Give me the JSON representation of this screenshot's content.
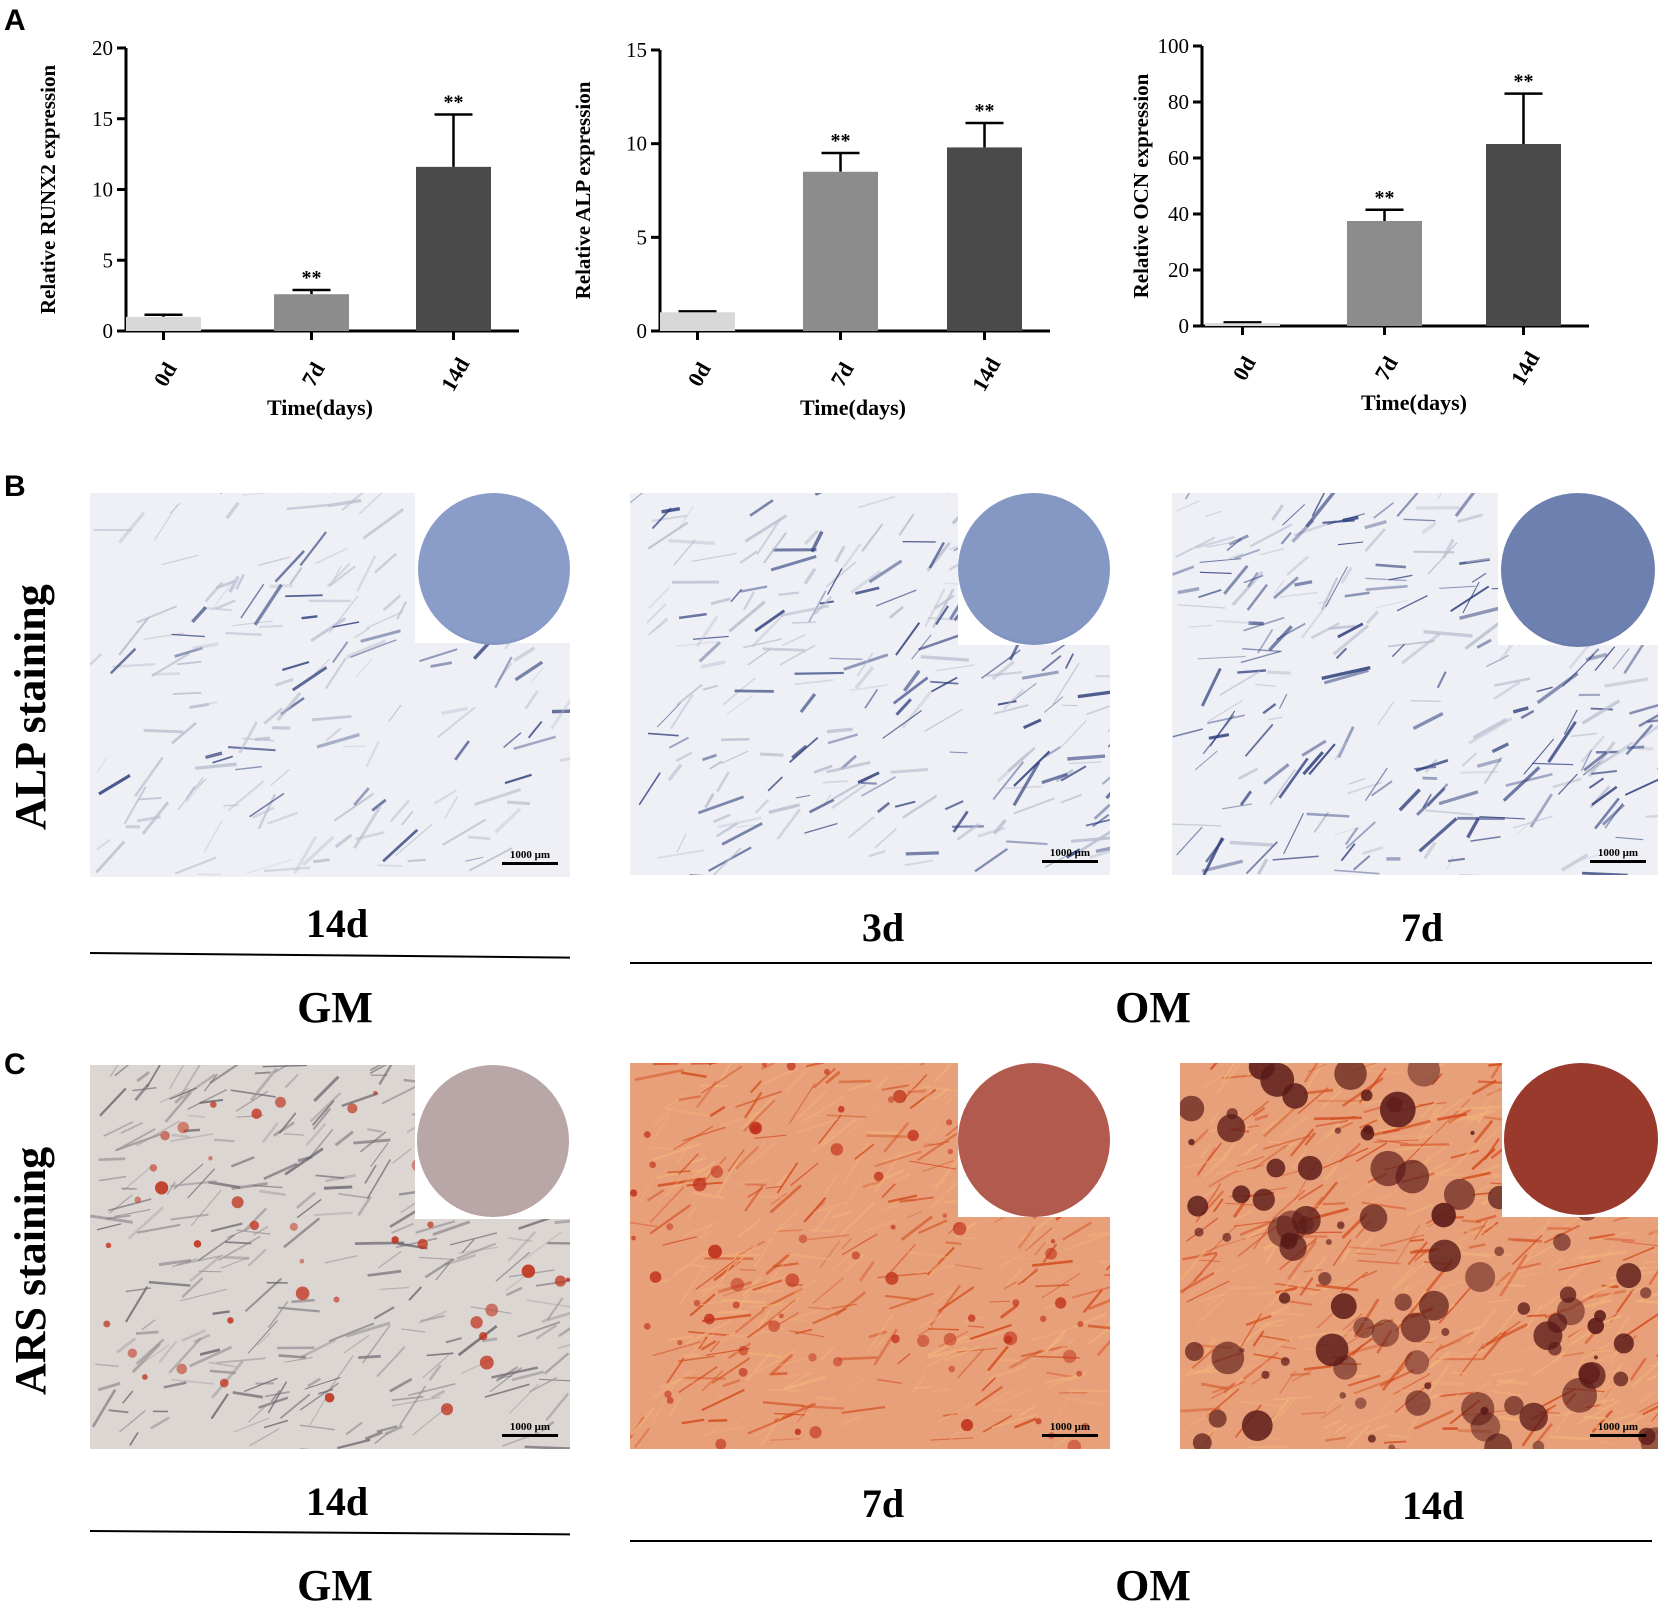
{
  "panels": {
    "a": "A",
    "b": "B",
    "c": "C"
  },
  "chart_data": [
    {
      "type": "bar",
      "categories": [
        "0d",
        "7d",
        "14d"
      ],
      "values": [
        1.0,
        2.6,
        11.6
      ],
      "errors": [
        0.15,
        0.3,
        3.7
      ],
      "significance": [
        "",
        "**",
        "**"
      ],
      "xlabel": "Time(days)",
      "ylabel": "Relative RUNX2 expression",
      "ylim": [
        0,
        20
      ],
      "yticks": [
        0,
        5,
        10,
        15,
        20
      ],
      "colors": [
        "#d8d8d8",
        "#8c8c8c",
        "#4a4a4a"
      ]
    },
    {
      "type": "bar",
      "categories": [
        "0d",
        "7d",
        "14d"
      ],
      "values": [
        1.0,
        8.5,
        9.8
      ],
      "errors": [
        0.05,
        1.0,
        1.3
      ],
      "significance": [
        "",
        "**",
        "**"
      ],
      "xlabel": "Time(days)",
      "ylabel": "Relative ALP expression",
      "ylim": [
        0,
        15
      ],
      "yticks": [
        0,
        5,
        10,
        15
      ],
      "colors": [
        "#d8d8d8",
        "#8c8c8c",
        "#4a4a4a"
      ]
    },
    {
      "type": "bar",
      "categories": [
        "0d",
        "7d",
        "14d"
      ],
      "values": [
        1.0,
        37.5,
        65.0
      ],
      "errors": [
        0.3,
        4.0,
        18.0
      ],
      "significance": [
        "",
        "**",
        "**"
      ],
      "xlabel": "Time(days)",
      "ylabel": "Relative OCN expression",
      "ylim": [
        0,
        100
      ],
      "yticks": [
        0,
        20,
        40,
        60,
        80,
        100
      ],
      "colors": [
        "#d8d8d8",
        "#8c8c8c",
        "#4a4a4a"
      ]
    }
  ],
  "alp_row": {
    "label": "ALP staining",
    "scale": "1000 μm",
    "captions": [
      "14d",
      "3d",
      "7d"
    ],
    "groups": [
      "GM",
      "OM"
    ],
    "stain_color": "#2a3a78",
    "dish_colors": [
      "#8a9cc8",
      "#8598c4",
      "#6e80b0"
    ]
  },
  "ars_row": {
    "label": "ARS staining",
    "scale": "1000 μm",
    "captions": [
      "14d",
      "7d",
      "14d"
    ],
    "groups": [
      "GM",
      "OM"
    ],
    "stain_color": "#c0301a",
    "dish_colors": [
      "#b9a6a6",
      "#b35a4e",
      "#9a3a2c"
    ]
  }
}
